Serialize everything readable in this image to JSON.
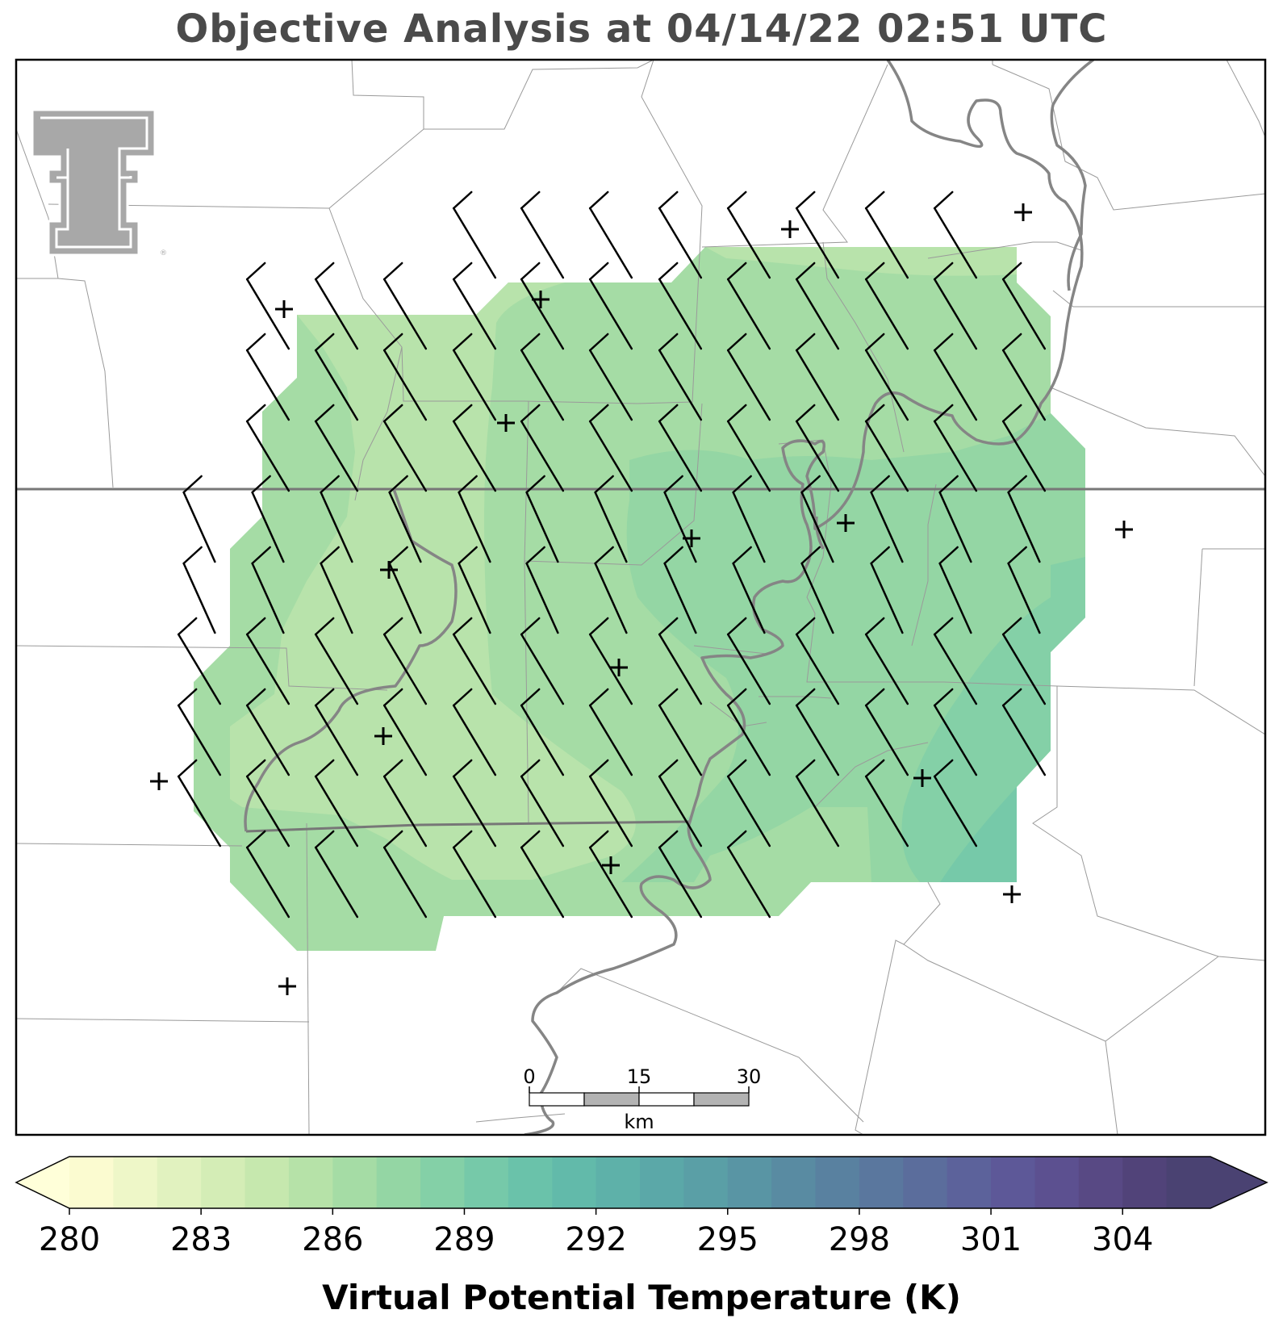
{
  "title": "Objective Analysis at 04/14/22 02:51 UTC",
  "colorbar": {
    "label": "Virtual Potential Temperature (K)",
    "min": 280,
    "max": 306,
    "tick_labels": [
      "280",
      "283",
      "286",
      "289",
      "292",
      "295",
      "298",
      "301",
      "304"
    ],
    "under_color": "#ffffd9",
    "over_color": "#4a4272",
    "colors": [
      "#fbfbd0",
      "#eef7c8",
      "#e1f2bf",
      "#d4edb6",
      "#c6e8ae",
      "#b6e2a8",
      "#a5dca5",
      "#94d6a4",
      "#84d0a7",
      "#76c9a9",
      "#6ac2aa",
      "#62baaa",
      "#5eb1a9",
      "#5ba8a8",
      "#5a9fa6",
      "#5995a4",
      "#598ba2",
      "#5981a0",
      "#5a779e",
      "#5b6d9c",
      "#5c629b",
      "#5d5898",
      "#5c5090",
      "#584984",
      "#514379",
      "#4a4272"
    ]
  },
  "scale_bar": {
    "labels": [
      "0",
      "15",
      "30"
    ],
    "unit": "km"
  },
  "map": {
    "field_colors": {
      "k285": "#b8e3ab",
      "k286": "#a5dca5",
      "k287": "#94d6a4",
      "k288": "#84d0a7",
      "k289": "#76c9a9"
    },
    "station_marker": "+",
    "barb_rows": [
      {
        "row": 0,
        "direction": "NW",
        "speed_kt": 10
      },
      {
        "row": 1,
        "direction": "NW",
        "speed_kt": 10
      },
      {
        "row": 2,
        "direction": "NW",
        "speed_kt": 10
      },
      {
        "row": 3,
        "direction": "NW",
        "speed_kt": 10
      },
      {
        "row": 4,
        "direction": "NNW",
        "speed_kt": 10
      },
      {
        "row": 5,
        "direction": "NW",
        "speed_kt": 10
      }
    ]
  },
  "logo": {
    "name": "Texas Tech Double T",
    "color": "#a8a8a8"
  }
}
